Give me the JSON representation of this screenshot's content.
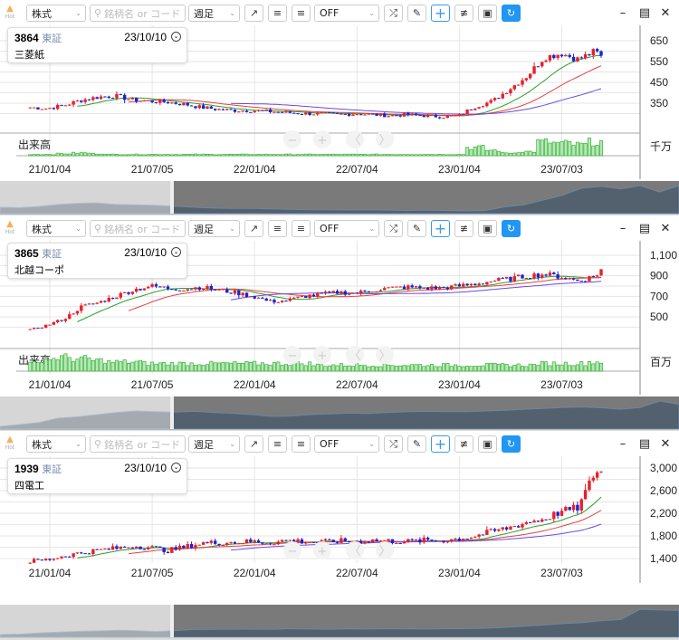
{
  "toolbar": {
    "hot_label": "Hot",
    "market_select": "株式",
    "search_placeholder": "銘柄名 or コード",
    "period_select": "週足",
    "indicator_select": "OFF",
    "icons": [
      "trend-line-icon",
      "align-left-icon",
      "align-right-icon",
      "shuffle-icon",
      "pencil-icon",
      "crosshair-icon",
      "settings-sliders-icon",
      "camera-icon",
      "refresh-icon"
    ],
    "window_buttons": [
      "minimize",
      "restore",
      "close"
    ]
  },
  "colors": {
    "up": "#e8202a",
    "down": "#1a22d6",
    "ma_short": "#2aa02a",
    "ma_mid": "#e84040",
    "ma_long": "#6a4ae0",
    "volume": "#22aa22",
    "accent": "#2196f3"
  },
  "x_labels": [
    "21/01/04",
    "21/07/05",
    "22/01/04",
    "22/07/04",
    "23/01/04",
    "23/07/03"
  ],
  "volume_label": "出来高",
  "nav_buttons": [
    "−",
    "+",
    "〈",
    "〉"
  ],
  "panels": [
    {
      "code": "3864",
      "exchange": "東証",
      "date": "23/10/10",
      "name": "三菱紙",
      "volume_unit": "千万",
      "y_ticks": [
        "650",
        "550",
        "450",
        "350"
      ]
    },
    {
      "code": "3865",
      "exchange": "東証",
      "date": "23/10/10",
      "name": "北越コーポ",
      "volume_unit": "百万",
      "y_ticks": [
        "1,100",
        "900",
        "700",
        "500"
      ]
    },
    {
      "code": "1939",
      "exchange": "東証",
      "date": "23/10/10",
      "name": "四電工",
      "volume_unit": "",
      "y_ticks": [
        "3,000",
        "2,600",
        "2,200",
        "1,800",
        "1,400"
      ]
    }
  ],
  "chart_data": [
    {
      "type": "candlestick",
      "interval": "weekly",
      "symbol": "3864",
      "months_from": "2020-12",
      "monthly_close": [
        330,
        325,
        340,
        365,
        380,
        385,
        365,
        360,
        355,
        345,
        330,
        320,
        315,
        315,
        310,
        305,
        300,
        300,
        295,
        300,
        295,
        290,
        295,
        290,
        285,
        290,
        335,
        360,
        420,
        480,
        570,
        590,
        560,
        600,
        520,
        600
      ],
      "monthly_volume": [
        1,
        1,
        1.5,
        2,
        1.5,
        1,
        1,
        1,
        1,
        1,
        1,
        1,
        1,
        1,
        1,
        1,
        1,
        1,
        1,
        1,
        1,
        1,
        1,
        1,
        1,
        1,
        6,
        4,
        2,
        3,
        10,
        9,
        8,
        10,
        8,
        9
      ],
      "ylim": [
        300,
        680
      ]
    },
    {
      "type": "candlestick",
      "interval": "weekly",
      "symbol": "3865",
      "months_from": "2020-12",
      "monthly_close": [
        370,
        420,
        480,
        600,
        640,
        700,
        760,
        800,
        780,
        770,
        790,
        760,
        735,
        700,
        650,
        660,
        700,
        720,
        740,
        730,
        760,
        780,
        790,
        780,
        780,
        800,
        820,
        850,
        870,
        900,
        915,
        890,
        850,
        900,
        1080,
        990
      ],
      "monthly_volume": [
        5,
        8,
        9,
        8,
        7,
        6,
        6,
        5,
        5,
        5,
        5,
        5,
        5,
        5,
        5,
        5,
        5,
        4,
        4,
        4,
        4,
        4,
        4,
        4,
        4,
        4,
        4,
        4,
        4,
        4,
        5,
        5,
        5,
        6,
        8,
        7
      ],
      "ylim": [
        320,
        1150
      ]
    },
    {
      "type": "candlestick",
      "interval": "weekly",
      "symbol": "1939",
      "months_from": "2020-12",
      "monthly_close": [
        1350,
        1380,
        1450,
        1500,
        1550,
        1580,
        1620,
        1600,
        1540,
        1600,
        1670,
        1680,
        1690,
        1700,
        1680,
        1720,
        1700,
        1690,
        1710,
        1700,
        1720,
        1710,
        1700,
        1720,
        1720,
        1750,
        1800,
        1880,
        1950,
        2040,
        2100,
        2230,
        2300,
        2950,
        2900,
        2880
      ],
      "ylim": [
        1200,
        3100
      ]
    }
  ]
}
